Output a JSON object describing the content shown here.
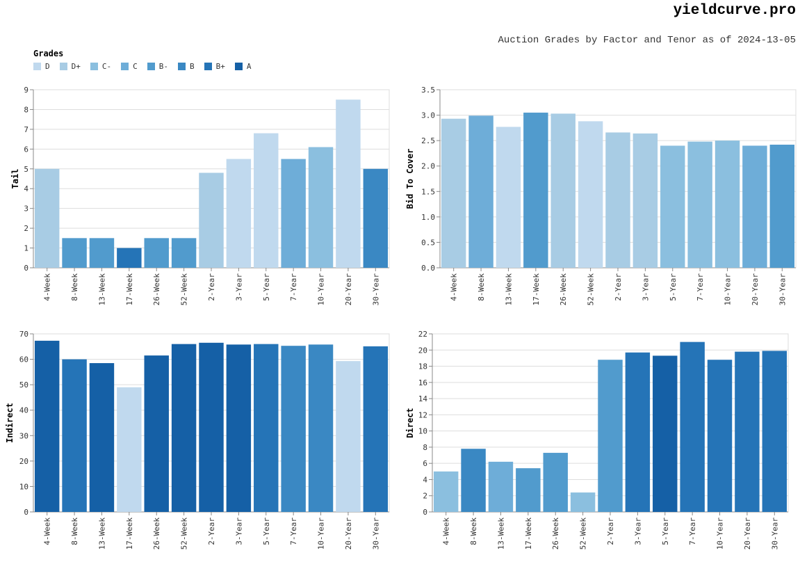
{
  "header": {
    "brand": "yieldcurve.pro",
    "subtitle": "Auction Grades by Factor and Tenor as of 2024-13-05"
  },
  "legend": {
    "title": "Grades",
    "items": [
      {
        "label": "D",
        "color": "#c0d9ee"
      },
      {
        "label": "D+",
        "color": "#a8cce4"
      },
      {
        "label": "C-",
        "color": "#8bbfdf"
      },
      {
        "label": "C",
        "color": "#6eadd8"
      },
      {
        "label": "B-",
        "color": "#519bcd"
      },
      {
        "label": "B",
        "color": "#3a88c3"
      },
      {
        "label": "B+",
        "color": "#2574b7"
      },
      {
        "label": "A",
        "color": "#1560a6"
      }
    ]
  },
  "chart_data": [
    {
      "type": "bar",
      "ylabel": "Tail",
      "xlabel": "",
      "ylim": [
        0,
        9
      ],
      "yticks": [
        0,
        1,
        2,
        3,
        4,
        5,
        6,
        7,
        8,
        9
      ],
      "categories": [
        "4-Week",
        "8-Week",
        "13-Week",
        "17-Week",
        "26-Week",
        "52-Week",
        "2-Year",
        "3-Year",
        "5-Year",
        "7-Year",
        "10-Year",
        "20-Year",
        "30-Year"
      ],
      "values": [
        5.0,
        1.5,
        1.5,
        1.0,
        1.5,
        1.5,
        4.8,
        5.5,
        6.8,
        5.5,
        6.1,
        8.5,
        5.0
      ],
      "grades": [
        "D+",
        "B-",
        "B-",
        "B+",
        "B-",
        "B-",
        "D+",
        "D",
        "D",
        "C",
        "C-",
        "D",
        "B"
      ],
      "grid": true
    },
    {
      "type": "bar",
      "ylabel": "Bid To Cover",
      "xlabel": "",
      "ylim": [
        0,
        3.5
      ],
      "yticks": [
        "0.0",
        "0.5",
        "1.0",
        "1.5",
        "2.0",
        "2.5",
        "3.0",
        "3.5"
      ],
      "categories": [
        "4-Week",
        "8-Week",
        "13-Week",
        "17-Week",
        "26-Week",
        "52-Week",
        "2-Year",
        "3-Year",
        "5-Year",
        "7-Year",
        "10-Year",
        "20-Year",
        "30-Year"
      ],
      "values": [
        2.93,
        2.99,
        2.77,
        3.05,
        3.03,
        2.88,
        2.66,
        2.64,
        2.4,
        2.48,
        2.5,
        2.4,
        2.42
      ],
      "grades": [
        "D+",
        "C",
        "D",
        "B-",
        "D+",
        "D",
        "D+",
        "D+",
        "C-",
        "C-",
        "C-",
        "C",
        "B-"
      ],
      "grid": true
    },
    {
      "type": "bar",
      "ylabel": "Indirect",
      "xlabel": "",
      "ylim": [
        0,
        70
      ],
      "yticks": [
        0,
        10,
        20,
        30,
        40,
        50,
        60,
        70
      ],
      "categories": [
        "4-Week",
        "8-Week",
        "13-Week",
        "17-Week",
        "26-Week",
        "52-Week",
        "2-Year",
        "3-Year",
        "5-Year",
        "7-Year",
        "10-Year",
        "20-Year",
        "30-Year"
      ],
      "values": [
        67.3,
        60.0,
        58.5,
        49.0,
        61.5,
        66.0,
        66.5,
        65.8,
        66.0,
        65.3,
        65.8,
        59.3,
        65.1
      ],
      "grades": [
        "A",
        "B+",
        "A",
        "D",
        "A",
        "A",
        "A",
        "A",
        "B+",
        "B",
        "B",
        "D",
        "B+"
      ],
      "grid": true
    },
    {
      "type": "bar",
      "ylabel": "Direct",
      "xlabel": "",
      "ylim": [
        0,
        22
      ],
      "yticks": [
        0,
        2,
        4,
        6,
        8,
        10,
        12,
        14,
        16,
        18,
        20,
        22
      ],
      "categories": [
        "4-Week",
        "8-Week",
        "13-Week",
        "17-Week",
        "26-Week",
        "52-Week",
        "2-Year",
        "3-Year",
        "5-Year",
        "7-Year",
        "10-Year",
        "20-Year",
        "30-Year"
      ],
      "values": [
        5.0,
        7.8,
        6.2,
        5.4,
        7.3,
        2.4,
        18.8,
        19.7,
        19.3,
        21.0,
        18.8,
        19.8,
        19.9
      ],
      "grades": [
        "C-",
        "B",
        "C",
        "B-",
        "B-",
        "C-",
        "B-",
        "B+",
        "A",
        "B+",
        "B+",
        "B+",
        "B+"
      ],
      "grid": true
    }
  ]
}
